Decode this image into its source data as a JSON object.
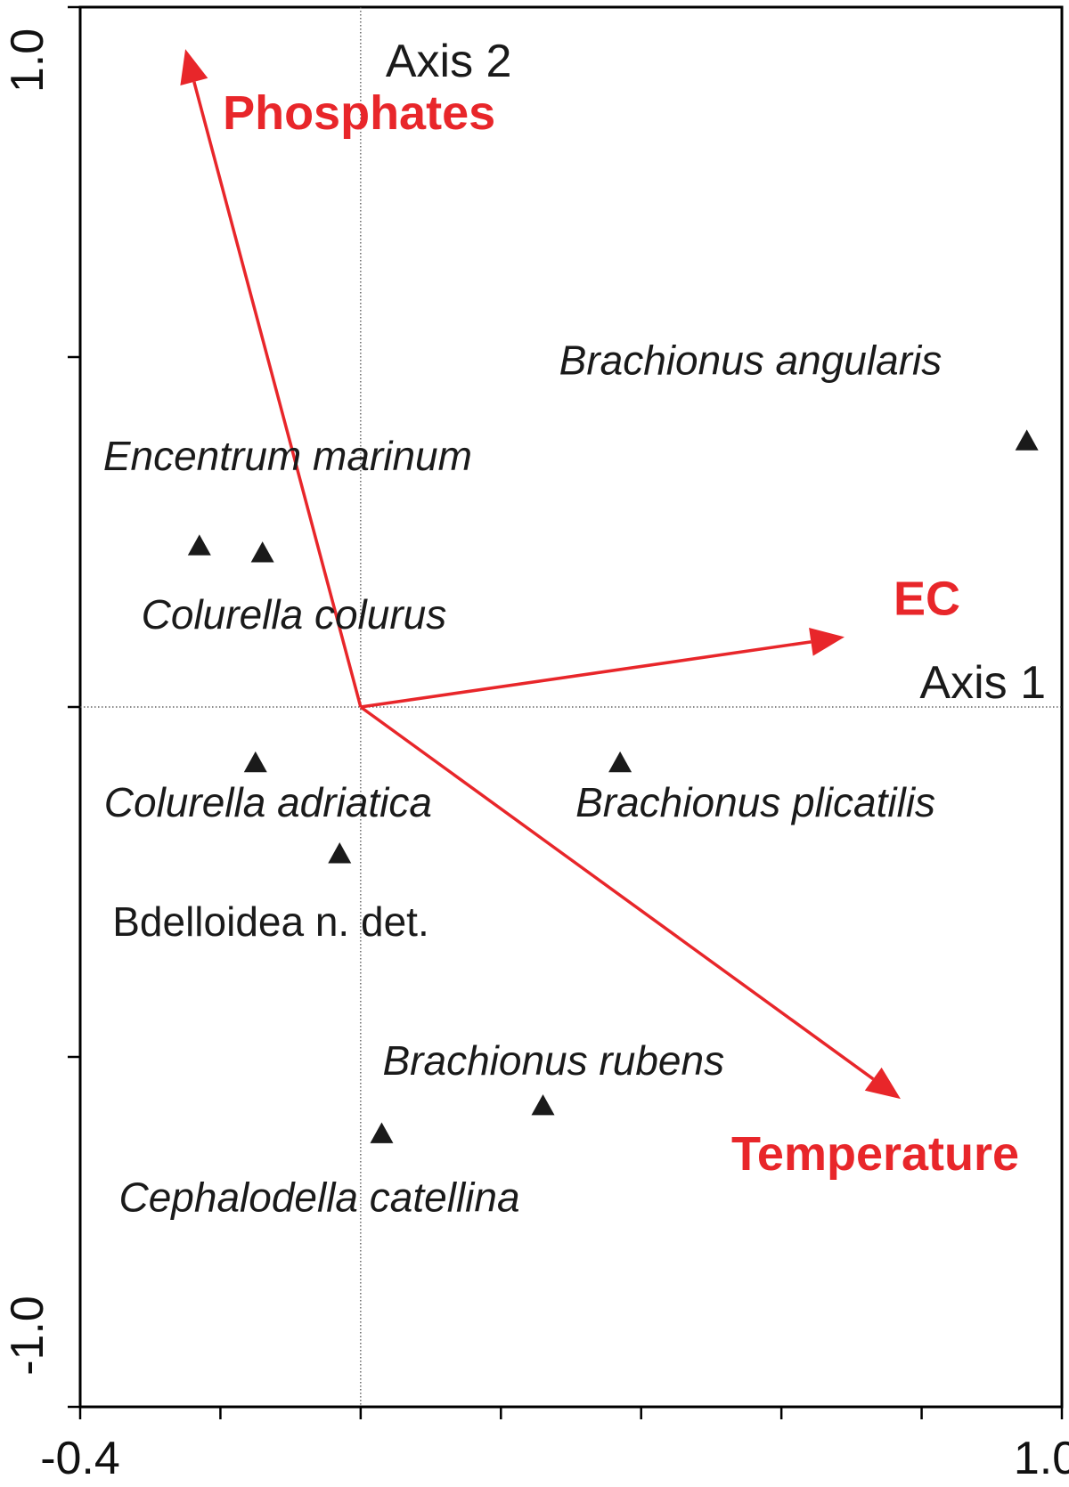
{
  "chart_data": {
    "type": "scatter",
    "subtype": "ordination-biplot",
    "xlim": [
      -0.4,
      1.0
    ],
    "ylim": [
      -1.0,
      1.0
    ],
    "x_tick_labels": [
      "-0.4",
      "1.0"
    ],
    "y_tick_labels": [
      "1.0",
      "-1.0"
    ],
    "x_ticks": [
      -0.4,
      -0.2,
      0.0,
      0.2,
      0.4,
      0.6,
      0.8,
      1.0
    ],
    "y_ticks": [
      1.0,
      0.5,
      0.0,
      -0.5,
      -1.0
    ],
    "axis_labels": {
      "axis1": "Axis 1",
      "axis2": "Axis 2"
    },
    "grid": false,
    "zero_lines": true,
    "colors": {
      "vectors": "#e8262a",
      "points": "#1a1a1a",
      "frame": "#000000"
    },
    "environmental_vectors": [
      {
        "name": "Phosphates",
        "x": -0.25,
        "y": 0.94
      },
      {
        "name": "EC",
        "x": 0.69,
        "y": 0.1
      },
      {
        "name": "Temperature",
        "x": 0.77,
        "y": -0.56
      }
    ],
    "species": [
      {
        "name": "Brachionus angularis",
        "x": 0.95,
        "y": 0.38,
        "italic": true
      },
      {
        "name": "Encentrum marinum",
        "x": -0.23,
        "y": 0.23,
        "italic": true
      },
      {
        "name": "Colurella colurus",
        "x": -0.14,
        "y": 0.22,
        "italic": true
      },
      {
        "name": "Colurella adriatica",
        "x": -0.15,
        "y": -0.08,
        "italic": true
      },
      {
        "name": "Brachionus plicatilis",
        "x": 0.37,
        "y": -0.08,
        "italic": true
      },
      {
        "name": "Bdelloidea n. det.",
        "x": -0.03,
        "y": -0.21,
        "italic": false
      },
      {
        "name": "Brachionus rubens",
        "x": 0.26,
        "y": -0.57,
        "italic": true
      },
      {
        "name": "Cephalodella catellina",
        "x": 0.03,
        "y": -0.61,
        "italic": true
      }
    ]
  }
}
